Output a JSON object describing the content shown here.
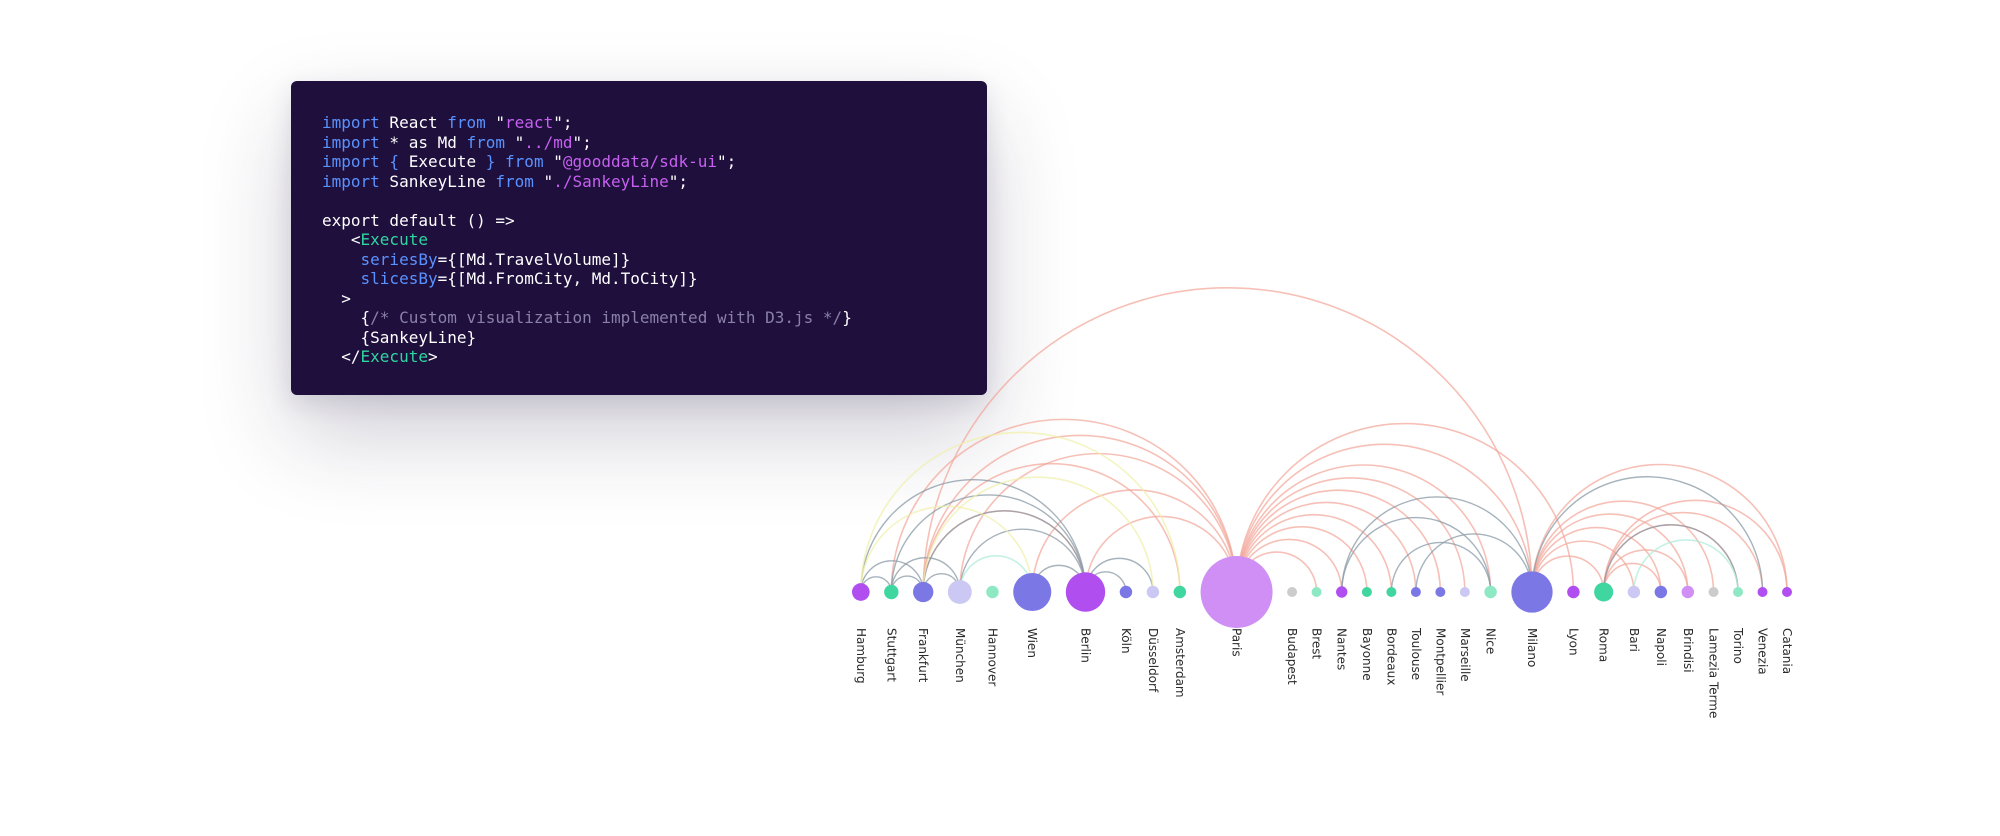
{
  "code": {
    "lines": [
      [
        {
          "t": "kw",
          "v": "import"
        },
        {
          "t": "",
          "v": " React "
        },
        {
          "t": "kw",
          "v": "from"
        },
        {
          "t": "",
          "v": " \""
        },
        {
          "t": "str",
          "v": "react"
        },
        {
          "t": "",
          "v": "\";"
        }
      ],
      [
        {
          "t": "kw",
          "v": "import"
        },
        {
          "t": "",
          "v": " * as Md "
        },
        {
          "t": "kw",
          "v": "from"
        },
        {
          "t": "",
          "v": " \""
        },
        {
          "t": "str",
          "v": "../md"
        },
        {
          "t": "",
          "v": "\";"
        }
      ],
      [
        {
          "t": "kw",
          "v": "import"
        },
        {
          "t": "kw",
          "v": " { "
        },
        {
          "t": "",
          "v": "Execute"
        },
        {
          "t": "kw",
          "v": " } from"
        },
        {
          "t": "",
          "v": " \""
        },
        {
          "t": "str",
          "v": "@gooddata/sdk-ui"
        },
        {
          "t": "",
          "v": "\";"
        }
      ],
      [
        {
          "t": "kw",
          "v": "import"
        },
        {
          "t": "",
          "v": " SankeyLine "
        },
        {
          "t": "kw",
          "v": "from"
        },
        {
          "t": "",
          "v": " \""
        },
        {
          "t": "str",
          "v": "./SankeyLine"
        },
        {
          "t": "",
          "v": "\";"
        }
      ],
      [],
      [
        {
          "t": "",
          "v": "export default () =>"
        }
      ],
      [
        {
          "t": "",
          "v": "   <"
        },
        {
          "t": "tag",
          "v": "Execute"
        }
      ],
      [
        {
          "t": "kw",
          "v": "    seriesBy"
        },
        {
          "t": "",
          "v": "={[Md.TravelVolume]}"
        }
      ],
      [
        {
          "t": "kw",
          "v": "    slicesBy"
        },
        {
          "t": "",
          "v": "={[Md.FromCity, Md.ToCity]}"
        }
      ],
      [
        {
          "t": "",
          "v": "  >"
        }
      ],
      [
        {
          "t": "",
          "v": "    {"
        },
        {
          "t": "cmt",
          "v": "/* Custom visualization implemented with D3.js */"
        },
        {
          "t": "",
          "v": "}"
        }
      ],
      [
        {
          "t": "",
          "v": "    {SankeyLine}"
        }
      ],
      [
        {
          "t": "",
          "v": "  </"
        },
        {
          "t": "tag",
          "v": "Execute"
        },
        {
          "t": "",
          "v": ">"
        }
      ]
    ]
  },
  "colors": {
    "purple": "#b04ef0",
    "green": "#3fd6a0",
    "slate": "#7b78e6",
    "lavender": "#cbc8f3",
    "mint": "#8fe8c4",
    "lilac": "#cf8ff5",
    "grey": "#cccccc",
    "arc_salmon": "#f2a598",
    "arc_gray": "#8a99a6",
    "arc_yellow": "#f0efa8",
    "arc_teal": "#a9ecd8"
  },
  "chart_data": {
    "type": "arc-diagram",
    "nodes": [
      {
        "name": "Hamburg",
        "color": "purple",
        "size": 6
      },
      {
        "name": "Stuttgart",
        "color": "green",
        "size": 4
      },
      {
        "name": "Frankfurt",
        "color": "slate",
        "size": 8
      },
      {
        "name": "München",
        "color": "lavender",
        "size": 11
      },
      {
        "name": "Hannover",
        "color": "mint",
        "size": 3
      },
      {
        "name": "Wien",
        "color": "slate",
        "size": 28
      },
      {
        "name": "Berlin",
        "color": "purple",
        "size": 30
      },
      {
        "name": "Köln",
        "color": "slate",
        "size": 3
      },
      {
        "name": "Düsseldorf",
        "color": "lavender",
        "size": 3
      },
      {
        "name": "Amsterdam",
        "color": "green",
        "size": 3
      },
      {
        "name": "Paris",
        "color": "lilac",
        "size": 100
      },
      {
        "name": "Budapest",
        "color": "grey",
        "size": 1
      },
      {
        "name": "Brest",
        "color": "mint",
        "size": 1
      },
      {
        "name": "Nantes",
        "color": "purple",
        "size": 2.5
      },
      {
        "name": "Bayonne",
        "color": "green",
        "size": 1.2
      },
      {
        "name": "Bordeaux",
        "color": "green",
        "size": 1.2
      },
      {
        "name": "Toulouse",
        "color": "slate",
        "size": 1.2
      },
      {
        "name": "Montpellier",
        "color": "slate",
        "size": 1.2
      },
      {
        "name": "Marseille",
        "color": "lavender",
        "size": 1.2
      },
      {
        "name": "Nice",
        "color": "mint",
        "size": 3
      },
      {
        "name": "Milano",
        "color": "slate",
        "size": 33
      },
      {
        "name": "Lyon",
        "color": "purple",
        "size": 3
      },
      {
        "name": "Roma",
        "color": "green",
        "size": 7
      },
      {
        "name": "Bari",
        "color": "lavender",
        "size": 3
      },
      {
        "name": "Napoli",
        "color": "slate",
        "size": 3
      },
      {
        "name": "Brindisi",
        "color": "lilac",
        "size": 3
      },
      {
        "name": "Lamezia Terme",
        "color": "grey",
        "size": 1
      },
      {
        "name": "Torino",
        "color": "mint",
        "size": 1
      },
      {
        "name": "Venezia",
        "color": "purple",
        "size": 0.8
      },
      {
        "name": "Catania",
        "color": "purple",
        "size": 0.6
      }
    ],
    "links": [
      {
        "from": "Paris",
        "to": "Milano",
        "color": "arc_salmon"
      },
      {
        "from": "Frankfurt",
        "to": "Milano",
        "color": "arc_salmon"
      },
      {
        "from": "Frankfurt",
        "to": "Paris",
        "color": "arc_salmon"
      },
      {
        "from": "München",
        "to": "Paris",
        "color": "arc_salmon"
      },
      {
        "from": "Wien",
        "to": "Paris",
        "color": "arc_salmon"
      },
      {
        "from": "Berlin",
        "to": "Paris",
        "color": "arc_salmon"
      },
      {
        "from": "Stuttgart",
        "to": "Paris",
        "color": "arc_salmon"
      },
      {
        "from": "Paris",
        "to": "Nantes",
        "color": "arc_salmon"
      },
      {
        "from": "Paris",
        "to": "Bordeaux",
        "color": "arc_salmon"
      },
      {
        "from": "Paris",
        "to": "Marseille",
        "color": "arc_salmon"
      },
      {
        "from": "Paris",
        "to": "Nice",
        "color": "arc_salmon"
      },
      {
        "from": "Paris",
        "to": "Montpellier",
        "color": "arc_salmon"
      },
      {
        "from": "Paris",
        "to": "Toulouse",
        "color": "arc_salmon"
      },
      {
        "from": "Paris",
        "to": "Bayonne",
        "color": "arc_salmon"
      },
      {
        "from": "Paris",
        "to": "Brest",
        "color": "arc_salmon"
      },
      {
        "from": "Paris",
        "to": "Lyon",
        "color": "arc_salmon"
      },
      {
        "from": "Milano",
        "to": "Roma",
        "color": "arc_salmon"
      },
      {
        "from": "Milano",
        "to": "Napoli",
        "color": "arc_salmon"
      },
      {
        "from": "Milano",
        "to": "Bari",
        "color": "arc_salmon"
      },
      {
        "from": "Milano",
        "to": "Brindisi",
        "color": "arc_salmon"
      },
      {
        "from": "Milano",
        "to": "Lamezia Terme",
        "color": "arc_salmon"
      },
      {
        "from": "Milano",
        "to": "Catania",
        "color": "arc_salmon"
      },
      {
        "from": "Roma",
        "to": "Catania",
        "color": "arc_salmon"
      },
      {
        "from": "Roma",
        "to": "Venezia",
        "color": "arc_salmon"
      },
      {
        "from": "Roma",
        "to": "Torino",
        "color": "arc_salmon"
      },
      {
        "from": "Roma",
        "to": "Brindisi",
        "color": "arc_salmon"
      },
      {
        "from": "Roma",
        "to": "Napoli",
        "color": "arc_salmon"
      },
      {
        "from": "Berlin",
        "to": "Frankfurt",
        "color": "arc_salmon"
      },
      {
        "from": "Amsterdam",
        "to": "Frankfurt",
        "color": "arc_salmon"
      },
      {
        "from": "Milano",
        "to": "Venezia",
        "color": "arc_gray"
      },
      {
        "from": "Hamburg",
        "to": "Berlin",
        "color": "arc_gray"
      },
      {
        "from": "Stuttgart",
        "to": "Berlin",
        "color": "arc_gray"
      },
      {
        "from": "Frankfurt",
        "to": "Berlin",
        "color": "arc_gray"
      },
      {
        "from": "München",
        "to": "Berlin",
        "color": "arc_gray"
      },
      {
        "from": "Hamburg",
        "to": "Frankfurt",
        "color": "arc_gray"
      },
      {
        "from": "Hamburg",
        "to": "Stuttgart",
        "color": "arc_gray"
      },
      {
        "from": "Stuttgart",
        "to": "Frankfurt",
        "color": "arc_gray"
      },
      {
        "from": "Stuttgart",
        "to": "München",
        "color": "arc_gray"
      },
      {
        "from": "Frankfurt",
        "to": "München",
        "color": "arc_gray"
      },
      {
        "from": "Wien",
        "to": "Berlin",
        "color": "arc_gray"
      },
      {
        "from": "Berlin",
        "to": "Düsseldorf",
        "color": "arc_gray"
      },
      {
        "from": "Berlin",
        "to": "Köln",
        "color": "arc_gray"
      },
      {
        "from": "Nantes",
        "to": "Milano",
        "color": "arc_gray"
      },
      {
        "from": "Toulouse",
        "to": "Milano",
        "color": "arc_gray"
      },
      {
        "from": "Nantes",
        "to": "Nice",
        "color": "arc_gray"
      },
      {
        "from": "Bordeaux",
        "to": "Nice",
        "color": "arc_gray"
      },
      {
        "from": "Roma",
        "to": "Torino",
        "color": "arc_gray"
      },
      {
        "from": "Hamburg",
        "to": "Amsterdam",
        "color": "arc_yellow"
      },
      {
        "from": "Hamburg",
        "to": "Wien",
        "color": "arc_yellow"
      },
      {
        "from": "Frankfurt",
        "to": "Düsseldorf",
        "color": "arc_yellow"
      },
      {
        "from": "Bari",
        "to": "Torino",
        "color": "arc_teal"
      },
      {
        "from": "München",
        "to": "Wien",
        "color": "arc_teal"
      }
    ]
  }
}
